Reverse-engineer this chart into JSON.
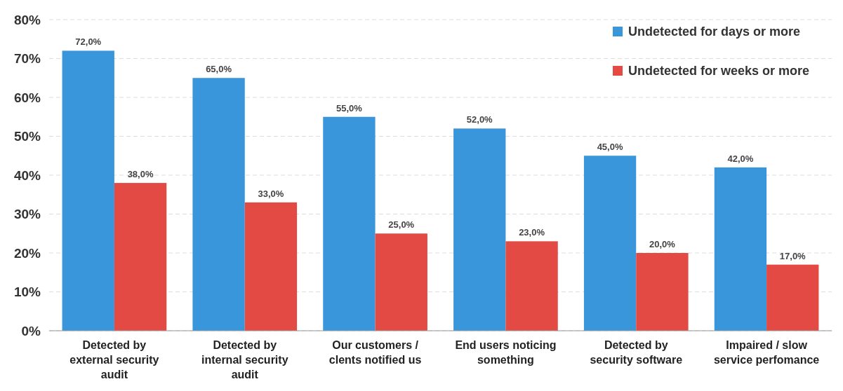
{
  "chart_data": {
    "type": "bar",
    "categories": [
      "Detected by external security audit",
      "Detected by internal security audit",
      "Our customers / clents notified us",
      "End users noticing something",
      "Detected by security software",
      "Impaired / slow service perfomance"
    ],
    "series": [
      {
        "name": "Undetected for days or more",
        "color": "#3a96db",
        "values": [
          72,
          65,
          55,
          52,
          45,
          42
        ],
        "value_labels": [
          "72,0%",
          "65,0%",
          "55,0%",
          "52,0%",
          "45,0%",
          "42,0%"
        ]
      },
      {
        "name": "Undetected for weeks or more",
        "color": "#e24a43",
        "values": [
          38,
          33,
          25,
          23,
          20,
          17
        ],
        "value_labels": [
          "38,0%",
          "33,0%",
          "25,0%",
          "23,0%",
          "20,0%",
          "17,0%"
        ]
      }
    ],
    "ylim": [
      0,
      80
    ],
    "yticks": [
      {
        "value": 0,
        "label": "0%"
      },
      {
        "value": 10,
        "label": "10%"
      },
      {
        "value": 20,
        "label": "20%"
      },
      {
        "value": 30,
        "label": "30%"
      },
      {
        "value": 40,
        "label": "40%"
      },
      {
        "value": 50,
        "label": "50%"
      },
      {
        "value": 60,
        "label": "60%"
      },
      {
        "value": 70,
        "label": "70%"
      },
      {
        "value": 80,
        "label": "80%"
      }
    ],
    "grid": "y",
    "legend": "top right"
  }
}
